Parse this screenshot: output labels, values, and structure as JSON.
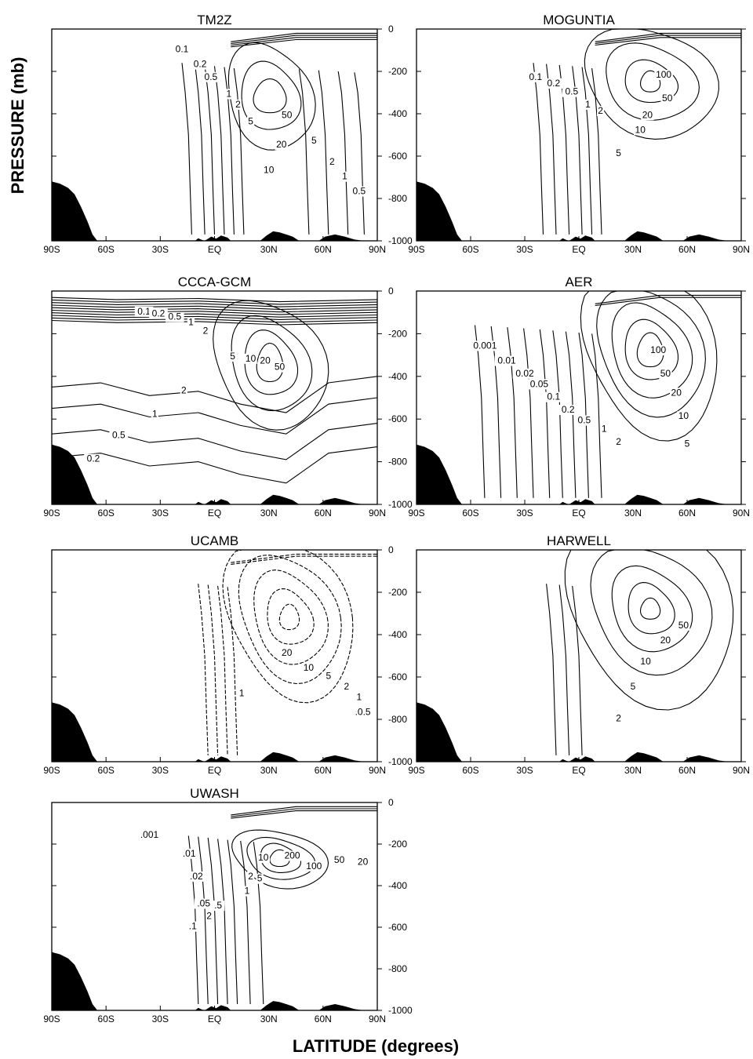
{
  "figure": {
    "ylabel": "PRESSURE (mb)",
    "xlabel": "LATITUDE (degrees)"
  },
  "colors": {
    "ink": "#000000",
    "background": "#ffffff"
  },
  "chart_data": [
    {
      "type": "contour",
      "title": "TM2Z",
      "x_ticks": [
        "90S",
        "60S",
        "30S",
        "EQ",
        "30N",
        "60N",
        "90N"
      ],
      "y_ticks": [
        "0",
        "200",
        "400",
        "600",
        "800",
        "1000"
      ],
      "xlim": [
        -90,
        90
      ],
      "ylim": [
        1000,
        0
      ],
      "y_tick_style": "negative",
      "contour_labels": [
        {
          "text": "0.1",
          "lat": -18,
          "p": 110
        },
        {
          "text": "0.2",
          "lat": -8,
          "p": 180
        },
        {
          "text": "0.5",
          "lat": -2,
          "p": 240
        },
        {
          "text": "1",
          "lat": 8,
          "p": 320
        },
        {
          "text": "2",
          "lat": 13,
          "p": 370
        },
        {
          "text": "5",
          "lat": 20,
          "p": 450
        },
        {
          "text": "50",
          "lat": 40,
          "p": 420
        },
        {
          "text": "20",
          "lat": 37,
          "p": 560
        },
        {
          "text": "10",
          "lat": 30,
          "p": 680
        },
        {
          "text": "5",
          "lat": 55,
          "p": 540
        },
        {
          "text": "2",
          "lat": 65,
          "p": 640
        },
        {
          "text": "1",
          "lat": 72,
          "p": 710
        },
        {
          "text": "0.5",
          "lat": 80,
          "p": 780
        }
      ]
    },
    {
      "type": "contour",
      "title": "MOGUNTIA",
      "x_ticks": [
        "90S",
        "60S",
        "30S",
        "EQ",
        "30N",
        "60N",
        "90N"
      ],
      "y_ticks": [
        "0",
        "200",
        "400",
        "600",
        "800",
        "1000"
      ],
      "xlim": [
        -90,
        90
      ],
      "ylim": [
        1000,
        0
      ],
      "y_tick_style": "none",
      "contour_labels": [
        {
          "text": "0.1",
          "lat": -24,
          "p": 240
        },
        {
          "text": "0.2",
          "lat": -14,
          "p": 270
        },
        {
          "text": "0.5",
          "lat": -4,
          "p": 310
        },
        {
          "text": "1",
          "lat": 5,
          "p": 370
        },
        {
          "text": "2",
          "lat": 12,
          "p": 400
        },
        {
          "text": "5",
          "lat": 22,
          "p": 600
        },
        {
          "text": "10",
          "lat": 34,
          "p": 490
        },
        {
          "text": "20",
          "lat": 38,
          "p": 420
        },
        {
          "text": "50",
          "lat": 49,
          "p": 340
        },
        {
          "text": "100",
          "lat": 47,
          "p": 230
        }
      ]
    },
    {
      "type": "contour",
      "title": "CCCA-GCM",
      "x_ticks": [
        "90S",
        "60S",
        "30S",
        "EQ",
        "30N",
        "60N",
        "90N"
      ],
      "y_ticks": [
        "0",
        "200",
        "400",
        "600",
        "800",
        "1000"
      ],
      "xlim": [
        -90,
        90
      ],
      "ylim": [
        1000,
        0
      ],
      "y_tick_style": "negative",
      "contour_labels": [
        {
          "text": "0.1",
          "lat": -39,
          "p": 110
        },
        {
          "text": "0.2",
          "lat": -31,
          "p": 120
        },
        {
          "text": "0.5",
          "lat": -22,
          "p": 135
        },
        {
          "text": "1",
          "lat": -13,
          "p": 160
        },
        {
          "text": "2",
          "lat": -5,
          "p": 200
        },
        {
          "text": "5",
          "lat": 10,
          "p": 320
        },
        {
          "text": "10",
          "lat": 20,
          "p": 330
        },
        {
          "text": "20",
          "lat": 28,
          "p": 340
        },
        {
          "text": "50",
          "lat": 36,
          "p": 370
        },
        {
          "text": "2",
          "lat": -17,
          "p": 480
        },
        {
          "text": "1",
          "lat": -33,
          "p": 590
        },
        {
          "text": "0.5",
          "lat": -53,
          "p": 690
        },
        {
          "text": "0.2",
          "lat": -67,
          "p": 800
        }
      ]
    },
    {
      "type": "contour",
      "title": "AER",
      "x_ticks": [
        "90S",
        "60S",
        "30S",
        "EQ",
        "30N",
        "60N",
        "90N"
      ],
      "y_ticks": [
        "0",
        "200",
        "400",
        "600",
        "800",
        "1000"
      ],
      "xlim": [
        -90,
        90
      ],
      "ylim": [
        1000,
        0
      ],
      "y_tick_style": "none",
      "contour_labels": [
        {
          "text": "0.001",
          "lat": -52,
          "p": 270
        },
        {
          "text": "0.01",
          "lat": -40,
          "p": 340
        },
        {
          "text": "0.02",
          "lat": -30,
          "p": 400
        },
        {
          "text": "0.05",
          "lat": -22,
          "p": 450
        },
        {
          "text": "0.1",
          "lat": -14,
          "p": 510
        },
        {
          "text": "0.2",
          "lat": -6,
          "p": 570
        },
        {
          "text": "0.5",
          "lat": 3,
          "p": 620
        },
        {
          "text": "1",
          "lat": 14,
          "p": 660
        },
        {
          "text": "2",
          "lat": 22,
          "p": 720
        },
        {
          "text": "100",
          "lat": 44,
          "p": 290
        },
        {
          "text": "50",
          "lat": 48,
          "p": 400
        },
        {
          "text": "20",
          "lat": 54,
          "p": 490
        },
        {
          "text": "10",
          "lat": 58,
          "p": 600
        },
        {
          "text": "5",
          "lat": 60,
          "p": 730
        }
      ]
    },
    {
      "type": "contour",
      "title": "UCAMB",
      "x_ticks": [
        "90S",
        "60S",
        "30S",
        "EQ",
        "30N",
        "60N",
        "90N"
      ],
      "y_ticks": [
        "0",
        "200",
        "400",
        "600",
        "800",
        "1000"
      ],
      "xlim": [
        -90,
        90
      ],
      "ylim": [
        1000,
        0
      ],
      "y_tick_style": "negative",
      "contour_labels": [
        {
          "text": "20",
          "lat": 40,
          "p": 500
        },
        {
          "text": "10",
          "lat": 52,
          "p": 570
        },
        {
          "text": "5",
          "lat": 63,
          "p": 610
        },
        {
          "text": "2",
          "lat": 73,
          "p": 660
        },
        {
          "text": "1",
          "lat": 80,
          "p": 710
        },
        {
          "text": "1",
          "lat": 15,
          "p": 690
        },
        {
          "text": ".0.5",
          "lat": 82,
          "p": 780
        }
      ]
    },
    {
      "type": "contour",
      "title": "HARWELL",
      "x_ticks": [
        "90S",
        "60S",
        "30S",
        "EQ",
        "30N",
        "60N",
        "90N"
      ],
      "y_ticks": [
        "0",
        "200",
        "400",
        "600",
        "800",
        "1000"
      ],
      "xlim": [
        -90,
        90
      ],
      "ylim": [
        1000,
        0
      ],
      "y_tick_style": "none",
      "contour_labels": [
        {
          "text": "50",
          "lat": 58,
          "p": 370
        },
        {
          "text": "20",
          "lat": 48,
          "p": 440
        },
        {
          "text": "10",
          "lat": 37,
          "p": 540
        },
        {
          "text": "5",
          "lat": 30,
          "p": 660
        },
        {
          "text": "2",
          "lat": 22,
          "p": 810
        }
      ]
    },
    {
      "type": "contour",
      "title": "UWASH",
      "x_ticks": [
        "90S",
        "60S",
        "30S",
        "EQ",
        "30N",
        "60N",
        "90N"
      ],
      "y_ticks": [
        "0",
        "200",
        "400",
        "600",
        "800",
        "1000"
      ],
      "xlim": [
        -90,
        90
      ],
      "ylim": [
        1000,
        0
      ],
      "y_tick_style": "negative",
      "contour_labels": [
        {
          "text": ".001",
          "lat": -36,
          "p": 170
        },
        {
          "text": ".01",
          "lat": -14,
          "p": 260
        },
        {
          "text": ".02",
          "lat": -10,
          "p": 370
        },
        {
          "text": ".05",
          "lat": -6,
          "p": 500
        },
        {
          "text": "2",
          "lat": -3,
          "p": 560
        },
        {
          "text": ".5",
          "lat": 2,
          "p": 510
        },
        {
          "text": ".1",
          "lat": -12,
          "p": 610
        },
        {
          "text": "1",
          "lat": 18,
          "p": 440
        },
        {
          "text": "2",
          "lat": 20,
          "p": 370
        },
        {
          "text": "5",
          "lat": 25,
          "p": 380
        },
        {
          "text": "10",
          "lat": 27,
          "p": 280
        },
        {
          "text": "200",
          "lat": 43,
          "p": 270
        },
        {
          "text": "100",
          "lat": 55,
          "p": 320
        },
        {
          "text": "50",
          "lat": 69,
          "p": 290
        },
        {
          "text": "20",
          "lat": 82,
          "p": 300
        }
      ]
    }
  ]
}
